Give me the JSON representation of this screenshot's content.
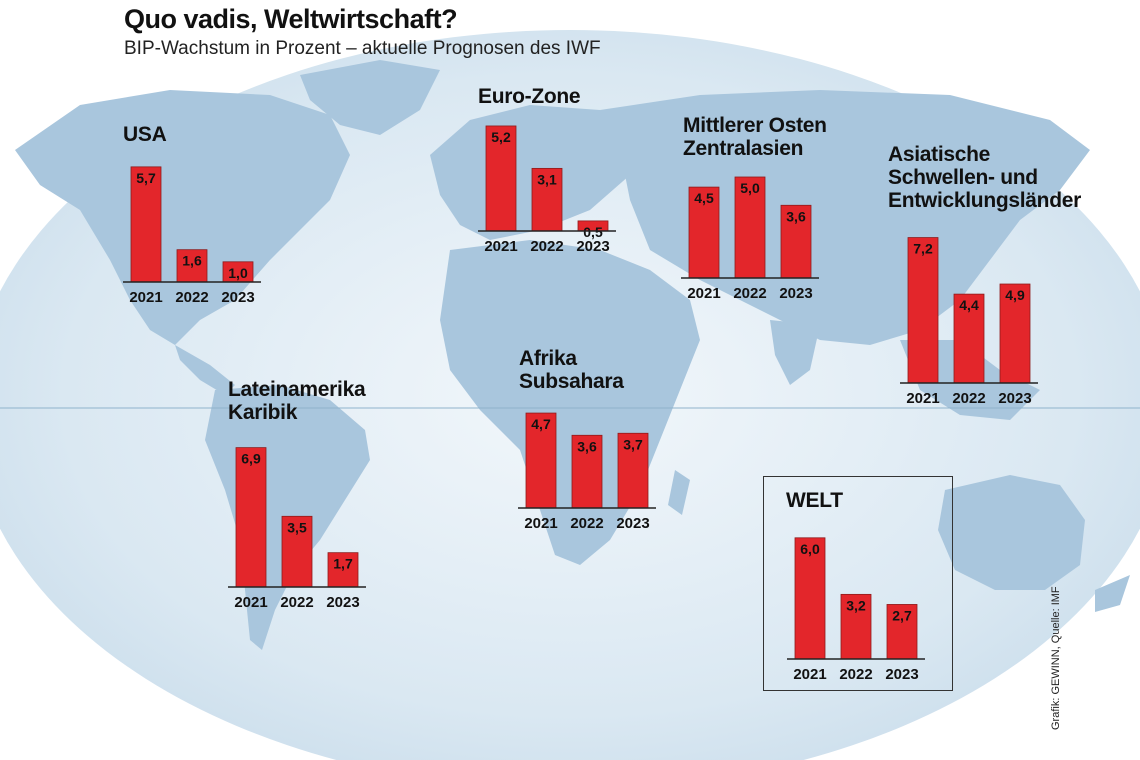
{
  "title": "Quo vadis, Weltwirtschaft?",
  "subtitle": "BIP-Wachstum in Prozent – aktuelle Prognosen des IWF",
  "credit": "Grafik: GEWINN, Quelle: IMF",
  "colors": {
    "bar": "#e3262b",
    "bar_stroke": "#8e1b1b",
    "ocean": "#dfeaf3",
    "land": "#a9c6dd",
    "text": "#111111"
  },
  "chart_data": [
    {
      "type": "bar",
      "title": "USA",
      "categories": [
        "2021",
        "2022",
        "2023"
      ],
      "values": [
        5.7,
        1.6,
        1.0
      ],
      "value_labels": [
        "5,7",
        "1,6",
        "1,0"
      ],
      "ylim": [
        0,
        7.2
      ]
    },
    {
      "type": "bar",
      "title": "Euro-Zone",
      "categories": [
        "2021",
        "2022",
        "2023"
      ],
      "values": [
        5.2,
        3.1,
        0.5
      ],
      "value_labels": [
        "5,2",
        "3,1",
        "0,5"
      ],
      "ylim": [
        0,
        7.2
      ]
    },
    {
      "type": "bar",
      "title": "Mittlerer Osten\nZentralasien",
      "categories": [
        "2021",
        "2022",
        "2023"
      ],
      "values": [
        4.5,
        5.0,
        3.6
      ],
      "value_labels": [
        "4,5",
        "5,0",
        "3,6"
      ],
      "ylim": [
        0,
        7.2
      ]
    },
    {
      "type": "bar",
      "title": "Asiatische\nSchwellen- und\nEntwicklungsländer",
      "categories": [
        "2021",
        "2022",
        "2023"
      ],
      "values": [
        7.2,
        4.4,
        4.9
      ],
      "value_labels": [
        "7,2",
        "4,4",
        "4,9"
      ],
      "ylim": [
        0,
        7.2
      ]
    },
    {
      "type": "bar",
      "title": "Lateinamerika\nKaribik",
      "categories": [
        "2021",
        "2022",
        "2023"
      ],
      "values": [
        6.9,
        3.5,
        1.7
      ],
      "value_labels": [
        "6,9",
        "3,5",
        "1,7"
      ],
      "ylim": [
        0,
        7.2
      ]
    },
    {
      "type": "bar",
      "title": "Afrika\nSubsahara",
      "categories": [
        "2021",
        "2022",
        "2023"
      ],
      "values": [
        4.7,
        3.6,
        3.7
      ],
      "value_labels": [
        "4,7",
        "3,6",
        "3,7"
      ],
      "ylim": [
        0,
        7.2
      ]
    },
    {
      "type": "bar",
      "title": "WELT",
      "categories": [
        "2021",
        "2022",
        "2023"
      ],
      "values": [
        6.0,
        3.2,
        2.7
      ],
      "value_labels": [
        "6,0",
        "3,2",
        "2,7"
      ],
      "ylim": [
        0,
        7.2
      ]
    }
  ]
}
